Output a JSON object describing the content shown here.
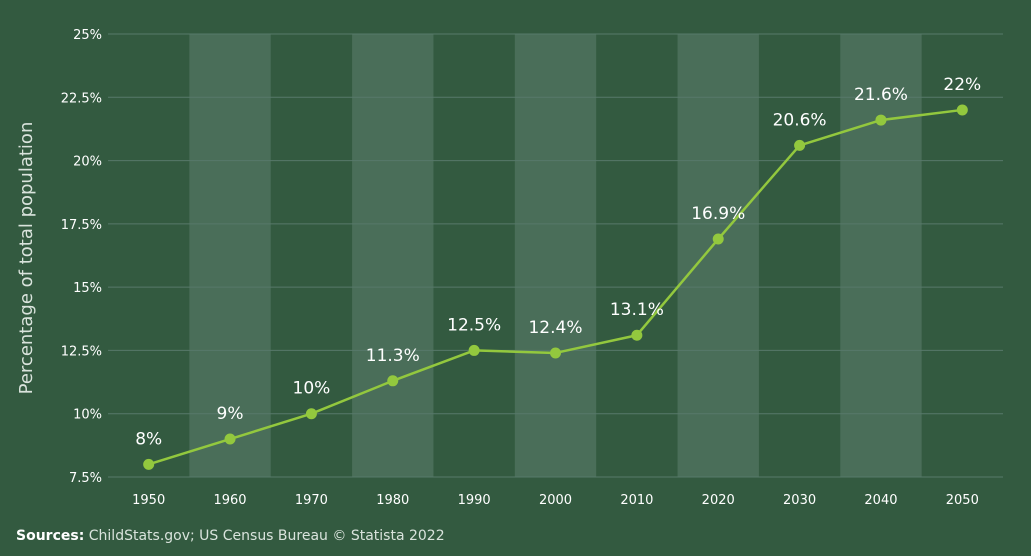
{
  "chart_data": {
    "type": "line",
    "title": "",
    "xlabel": "",
    "ylabel": "Percentage of total population",
    "x": [
      "1950",
      "1960",
      "1970",
      "1980",
      "1990",
      "2000",
      "2010",
      "2020",
      "2030",
      "2040",
      "2050"
    ],
    "values": [
      8,
      9,
      10,
      11.3,
      12.5,
      12.4,
      13.1,
      16.9,
      20.6,
      21.6,
      22
    ],
    "data_labels": [
      "8%",
      "9%",
      "10%",
      "11.3%",
      "12.5%",
      "12.4%",
      "13.1%",
      "16.9%",
      "20.6%",
      "21.6%",
      "22%"
    ],
    "ylim": [
      7.5,
      25
    ],
    "yticks": [
      7.5,
      10,
      12.5,
      15,
      17.5,
      20,
      22.5,
      25
    ],
    "ytick_labels": [
      "7.5%",
      "10%",
      "12.5%",
      "15%",
      "17.5%",
      "20%",
      "22.5%",
      "25%"
    ],
    "grid": true,
    "legend": "none"
  },
  "source": {
    "label": "Sources:",
    "text": "ChildStats.gov; US Census Bureau © Statista 2022"
  },
  "colors": {
    "background": "#335a40",
    "band": "#4a6e59",
    "gridline": "#57796a",
    "line": "#93c83e",
    "text": "#ffffff"
  }
}
